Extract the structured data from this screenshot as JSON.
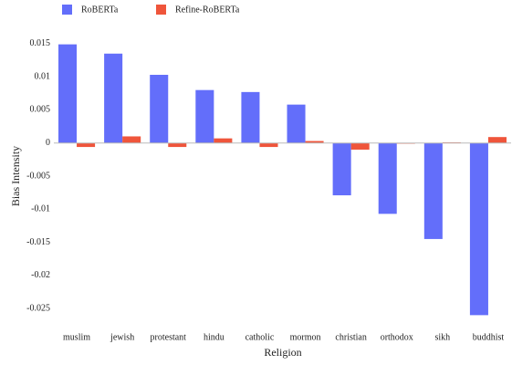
{
  "chart_data": {
    "type": "bar",
    "x_label": "Religion",
    "y_label": "Bias Intensity",
    "categories": [
      "muslim",
      "jewish",
      "protestant",
      "hindu",
      "catholic",
      "mormon",
      "christian",
      "orthodox",
      "sikh",
      "buddhist"
    ],
    "series": [
      {
        "name": "RoBERTa",
        "color": "#636efa",
        "values": [
          0.0149,
          0.0135,
          0.0103,
          0.008,
          0.0077,
          0.0058,
          -0.0079,
          -0.0107,
          -0.0145,
          -0.026
        ]
      },
      {
        "name": "Refine-RoBERTa",
        "color": "#ef553b",
        "values": [
          -0.0006,
          0.001,
          -0.0006,
          0.0007,
          -0.0006,
          0.0003,
          -0.001,
          -0.0001,
          0.0001,
          0.0009
        ]
      }
    ],
    "ylim": [
      -0.0265,
      0.0165
    ],
    "yticks": [
      0.015,
      0.01,
      0.005,
      0,
      -0.005,
      -0.01,
      -0.015,
      -0.02,
      -0.025
    ],
    "legend": "top-left"
  }
}
